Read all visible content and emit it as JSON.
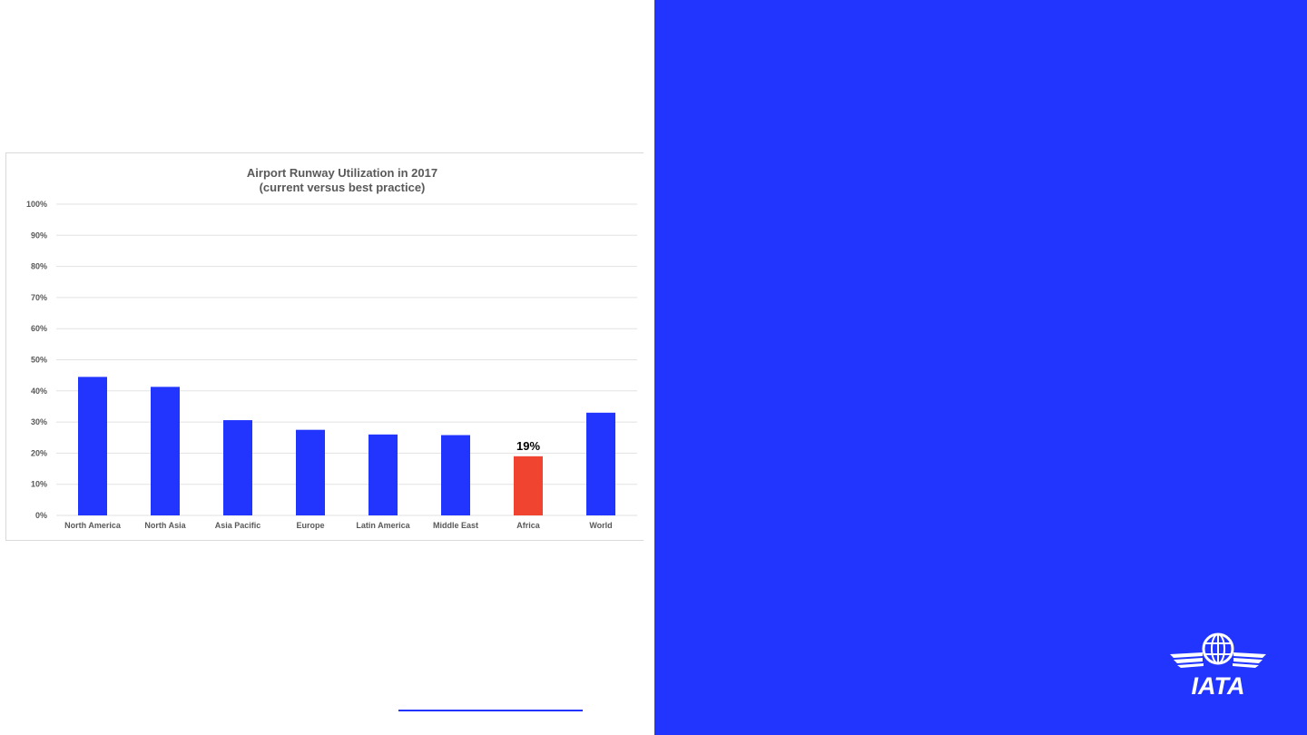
{
  "colors": {
    "accent": "#2135FF",
    "highlight": "#F04330",
    "background_right": "#2135FF"
  },
  "logo": {
    "text": "IATA",
    "icon": "iata-globe-wings-icon"
  },
  "chart_data": {
    "type": "bar",
    "title": "Airport Runway Utilization in 2017",
    "subtitle": "(current versus best practice)",
    "xlabel": "",
    "ylabel": "",
    "categories": [
      "North America",
      "North Asia",
      "Asia Pacific",
      "Europe",
      "Latin America",
      "Middle East",
      "Africa",
      "World"
    ],
    "values": [
      44.5,
      41.3,
      30.6,
      27.5,
      26.0,
      25.8,
      19,
      33.0
    ],
    "ylim": [
      0,
      100
    ],
    "yticks": [
      "0%",
      "10%",
      "20%",
      "30%",
      "40%",
      "50%",
      "60%",
      "70%",
      "80%",
      "90%",
      "100%"
    ],
    "grid": true,
    "legend": "none",
    "highlight_category": "Africa",
    "annotations": [
      {
        "category": "Africa",
        "label": "19%"
      }
    ]
  }
}
